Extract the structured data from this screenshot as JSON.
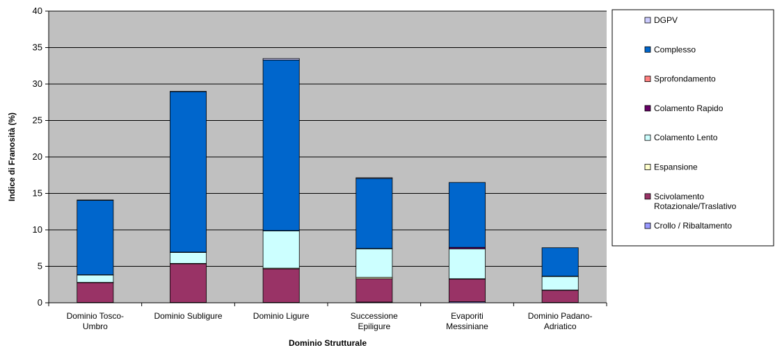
{
  "chart_data": {
    "type": "bar",
    "stacked": true,
    "xlabel": "Dominio Strutturale",
    "ylabel": "Indice di Franosità (%)",
    "ylim": [
      0,
      40
    ],
    "yticks": [
      0,
      5,
      10,
      15,
      20,
      25,
      30,
      35,
      40
    ],
    "grid": true,
    "legend_position": "right",
    "plot_background": "#c0c0c0",
    "categories": [
      [
        "Dominio Tosco-",
        "Umbro"
      ],
      [
        "Dominio Subligure"
      ],
      [
        "Dominio Ligure"
      ],
      [
        "Successione",
        "Epiligure"
      ],
      [
        "Evaporiti",
        "Messiniane"
      ],
      [
        "Dominio Padano-",
        "Adriatico"
      ]
    ],
    "series": [
      {
        "name": "Crollo / Ribaltamento",
        "label_lines": [
          "Crollo / Ribaltamento"
        ],
        "color": "#9999ff",
        "values": [
          0.05,
          0.05,
          0.05,
          0.1,
          0.15,
          0.05
        ]
      },
      {
        "name": "Scivolamento Rotazionale/Traslativo",
        "label_lines": [
          "Scivolamento",
          "Rotazionale/Traslativo"
        ],
        "color": "#993366",
        "values": [
          2.7,
          5.3,
          4.6,
          3.2,
          3.1,
          1.65
        ]
      },
      {
        "name": "Espansione",
        "label_lines": [
          "Espansione"
        ],
        "color": "#ffffcc",
        "values": [
          0.05,
          0.05,
          0.1,
          0.2,
          0.05,
          0.05
        ]
      },
      {
        "name": "Colamento Lento",
        "label_lines": [
          "Colamento Lento"
        ],
        "color": "#ccffff",
        "values": [
          1.0,
          1.5,
          5.1,
          3.9,
          4.1,
          1.85
        ]
      },
      {
        "name": "Colamento Rapido",
        "label_lines": [
          "Colamento Rapido"
        ],
        "color": "#660066",
        "values": [
          0.05,
          0.05,
          0.05,
          0.05,
          0.2,
          0.05
        ]
      },
      {
        "name": "Sprofondamento",
        "label_lines": [
          "Sprofondamento"
        ],
        "color": "#ff8080",
        "values": [
          0.0,
          0.0,
          0.0,
          0.0,
          0.0,
          0.0
        ]
      },
      {
        "name": "Complesso",
        "label_lines": [
          "Complesso"
        ],
        "color": "#0066cc",
        "values": [
          10.2,
          22.0,
          23.4,
          9.6,
          8.9,
          3.9
        ]
      },
      {
        "name": "DGPV",
        "label_lines": [
          "DGPV"
        ],
        "color": "#ccccff",
        "values": [
          0.05,
          0.05,
          0.2,
          0.1,
          0.0,
          0.0
        ]
      }
    ]
  }
}
